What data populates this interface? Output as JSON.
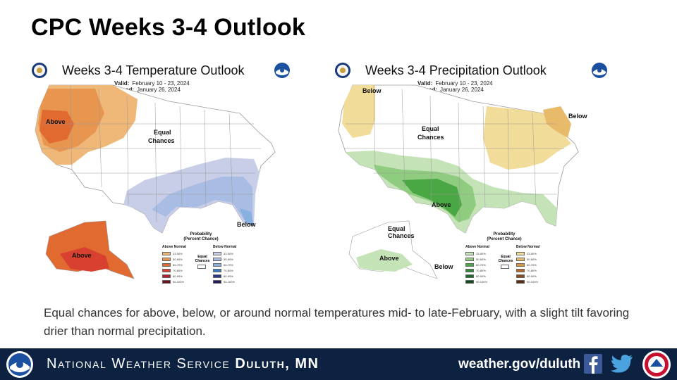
{
  "title": "CPC Weeks 3-4 Outlook",
  "temperature_map": {
    "title": "Weeks 3-4 Temperature Outlook",
    "valid_label": "Valid:",
    "valid_value": "February 10 - 23, 2024",
    "issued_label": "Issued:",
    "issued_value": "January 26, 2024",
    "region_labels": {
      "above": "Above",
      "equal_line1": "Equal",
      "equal_line2": "Chances",
      "below": "Below",
      "alaska_above": "Above"
    },
    "legend": {
      "title_line1": "Probability",
      "title_line2": "(Percent Chance)",
      "above_head": "Above Normal",
      "below_head": "Below Normal",
      "equal_line1": "Equal",
      "equal_line2": "Chances",
      "ranges": [
        "33-50%",
        "50-60%",
        "60-70%",
        "70-80%",
        "80-90%",
        "90-100%"
      ],
      "above_colors": [
        "#f0b878",
        "#e89550",
        "#e06a30",
        "#d84030",
        "#b02030",
        "#701020"
      ],
      "below_colors": [
        "#c8cde8",
        "#a9bde4",
        "#88b0e0",
        "#3a78c8",
        "#283a90",
        "#281860"
      ]
    }
  },
  "precipitation_map": {
    "title": "Weeks 3-4 Precipitation Outlook",
    "valid_label": "Valid:",
    "valid_value": "February 10 - 23, 2024",
    "issued_label": "Issued:",
    "issued_value": "January 26, 2024",
    "region_labels": {
      "below_nw": "Below",
      "equal_line1": "Equal",
      "equal_line2": "Chances",
      "below_ne": "Below",
      "above": "Above",
      "ak_equal_line1": "Equal",
      "ak_equal_line2": "Chances",
      "ak_above": "Above",
      "ak_below": "Below"
    },
    "legend": {
      "title_line1": "Probability",
      "title_line2": "(Percent Chance)",
      "above_head": "Above Normal",
      "below_head": "Below Normal",
      "equal_line1": "Equal",
      "equal_line2": "Chances",
      "ranges": [
        "33-50%",
        "50-60%",
        "60-70%",
        "70-80%",
        "80-90%",
        "90-100%"
      ],
      "above_colors": [
        "#c4e4b8",
        "#90cc80",
        "#4aa844",
        "#2e8a38",
        "#1e6a2a",
        "#0e4a1a"
      ],
      "below_colors": [
        "#f2dc9a",
        "#e8bb6a",
        "#d8953e",
        "#b86a2a",
        "#8a4a20",
        "#5a2a10"
      ]
    }
  },
  "caption": "Equal chances for above, below, or around normal temperatures mid- to late-February, with a slight tilt favoring drier than normal precipitation.",
  "footer": {
    "name_part1": "National Weather Service",
    "name_part2": "Duluth, MN",
    "url": "weather.gov/duluth",
    "icons": [
      "noaa-logo-icon",
      "facebook-icon",
      "twitter-icon",
      "nws-badge-icon"
    ],
    "bg_color": "#0d2240"
  },
  "colors": {
    "conus_fill": "#ffffff",
    "state_line": "#999999"
  }
}
